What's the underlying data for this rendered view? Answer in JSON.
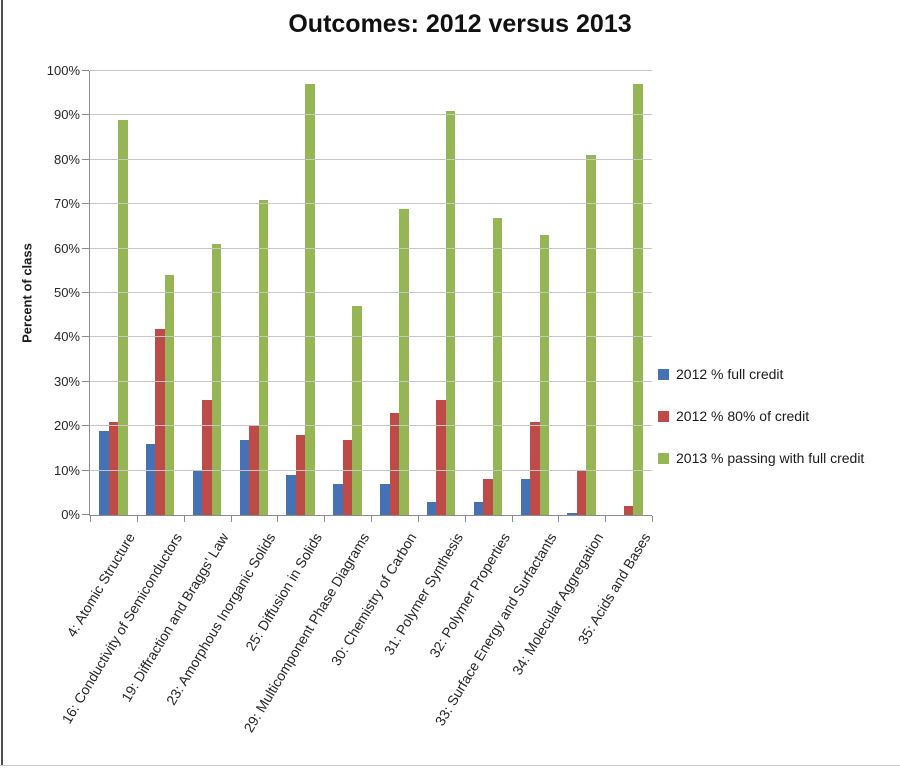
{
  "page": {
    "title": "Outcomes: 2012 versus 2013"
  },
  "chart_data": {
    "type": "bar",
    "title": "Outcomes: 2012 versus 2013",
    "ylabel": "Percent of class",
    "xlabel": "",
    "ylim": [
      0,
      100
    ],
    "ytick_step": 10,
    "ytick_labels": [
      "0%",
      "10%",
      "20%",
      "30%",
      "40%",
      "50%",
      "60%",
      "70%",
      "80%",
      "90%",
      "100%"
    ],
    "grid": true,
    "legend_position": "right",
    "categories": [
      "4: Atomic Structure",
      "16: Conductivity of Semiconductors",
      "19: Diffraction and Braggs' Law",
      "23: Amorphous Inorganic Solids",
      "25: Diffusion in Solids",
      "29: Multicomponent Phase Diagrams",
      "30: Chemistry of Carbon",
      "31: Polymer Synthesis",
      "32: Polymer Properties",
      "33: Surface Energy and Surfactants",
      "34: Molecular Aggregation",
      "35: Acids and Bases"
    ],
    "series": [
      {
        "name": "2012 % full credit",
        "color": "#4472B4",
        "values": [
          19,
          16,
          10,
          17,
          9,
          7,
          7,
          3,
          3,
          8,
          0.5,
          0
        ]
      },
      {
        "name": "2012 % 80% of credit",
        "color": "#BE4B48",
        "values": [
          21,
          42,
          26,
          20,
          18,
          17,
          23,
          26,
          8,
          21,
          10,
          2
        ]
      },
      {
        "name": "2013 % passing with full credit",
        "color": "#96B554",
        "values": [
          89,
          54,
          61,
          71,
          97,
          47,
          69,
          91,
          67,
          63,
          81,
          97
        ]
      }
    ],
    "colors": {
      "gridline": "#c6c6c6",
      "axis": "#8c8c8c",
      "text": "#262626"
    }
  }
}
